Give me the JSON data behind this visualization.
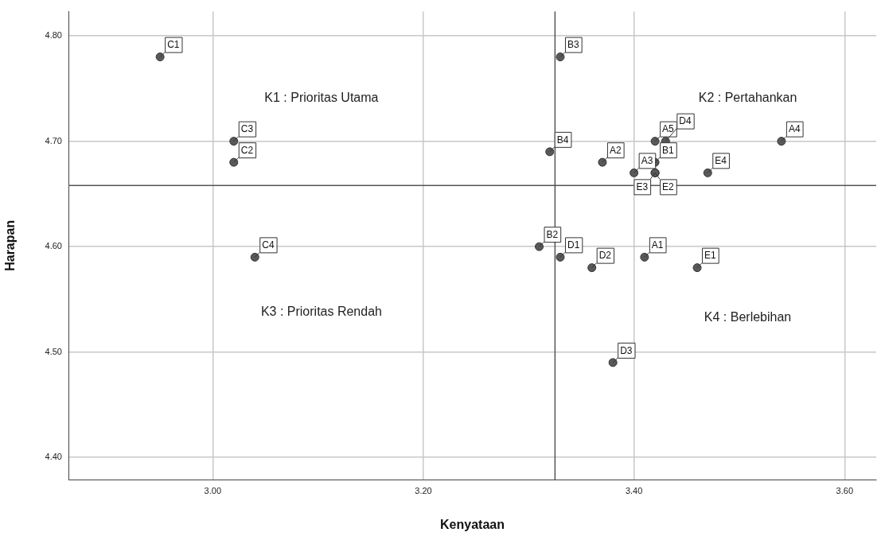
{
  "chart_data": {
    "type": "scatter",
    "xlabel": "Kenyataan",
    "ylabel": "Harapan",
    "x": [
      3.41,
      3.37,
      3.4,
      3.54,
      3.42,
      3.42,
      3.31,
      3.33,
      3.32,
      2.95,
      3.02,
      3.02,
      3.04,
      3.33,
      3.36,
      3.38,
      3.43,
      3.46,
      3.42,
      3.42,
      3.47
    ],
    "values": [
      4.59,
      4.68,
      4.67,
      4.7,
      4.7,
      4.68,
      4.6,
      4.78,
      4.69,
      4.78,
      4.68,
      4.7,
      4.59,
      4.59,
      4.58,
      4.49,
      4.7,
      4.58,
      4.67,
      4.67,
      4.67
    ],
    "color": "#595959",
    "marker": "circle",
    "grid": true,
    "legend": false,
    "xlim": [
      2.863,
      3.63
    ],
    "ylim": [
      4.379,
      4.823
    ],
    "xticks": [
      {
        "value": 3.0,
        "label": "3.00"
      },
      {
        "value": 3.2,
        "label": "3.20"
      },
      {
        "value": 3.4,
        "label": "3.40"
      },
      {
        "value": 3.6,
        "label": "3.60"
      }
    ],
    "yticks": [
      {
        "value": 4.4,
        "label": "4.40"
      },
      {
        "value": 4.5,
        "label": "4.50"
      },
      {
        "value": 4.6,
        "label": "4.60"
      },
      {
        "value": 4.7,
        "label": "4.70"
      },
      {
        "value": 4.8,
        "label": "4.80"
      }
    ],
    "ref_lines": [
      {
        "axis": "x",
        "value": 3.325,
        "color": "#555555"
      },
      {
        "axis": "y",
        "value": 4.658,
        "color": "#555555"
      }
    ],
    "annotations": [
      {
        "text": "A1",
        "x": 3.41,
        "y": 4.59
      },
      {
        "text": "A2",
        "x": 3.37,
        "y": 4.68
      },
      {
        "text": "A3",
        "x": 3.4,
        "y": 4.67
      },
      {
        "text": "A4",
        "x": 3.54,
        "y": 4.7
      },
      {
        "text": "A5",
        "x": 3.42,
        "y": 4.7
      },
      {
        "text": "B1",
        "x": 3.42,
        "y": 4.68
      },
      {
        "text": "B2",
        "x": 3.31,
        "y": 4.6
      },
      {
        "text": "B3",
        "x": 3.33,
        "y": 4.78
      },
      {
        "text": "B4",
        "x": 3.32,
        "y": 4.69
      },
      {
        "text": "C1",
        "x": 2.95,
        "y": 4.78
      },
      {
        "text": "C2",
        "x": 3.02,
        "y": 4.68
      },
      {
        "text": "C3",
        "x": 3.02,
        "y": 4.7
      },
      {
        "text": "C4",
        "x": 3.04,
        "y": 4.59
      },
      {
        "text": "D1",
        "x": 3.33,
        "y": 4.59
      },
      {
        "text": "D2",
        "x": 3.36,
        "y": 4.58
      },
      {
        "text": "D3",
        "x": 3.38,
        "y": 4.49
      },
      {
        "text": "D4",
        "x": 3.43,
        "y": 4.7
      },
      {
        "text": "E1",
        "x": 3.46,
        "y": 4.58
      },
      {
        "text": "E2",
        "x": 3.42,
        "y": 4.67
      },
      {
        "text": "E3",
        "x": 3.42,
        "y": 4.67
      },
      {
        "text": "E4",
        "x": 3.47,
        "y": 4.67
      },
      "K1 : Prioritas Utama",
      "K2 : Pertahankan",
      "K3 : Prioritas Rendah",
      "K4 : Berlebihan"
    ]
  }
}
